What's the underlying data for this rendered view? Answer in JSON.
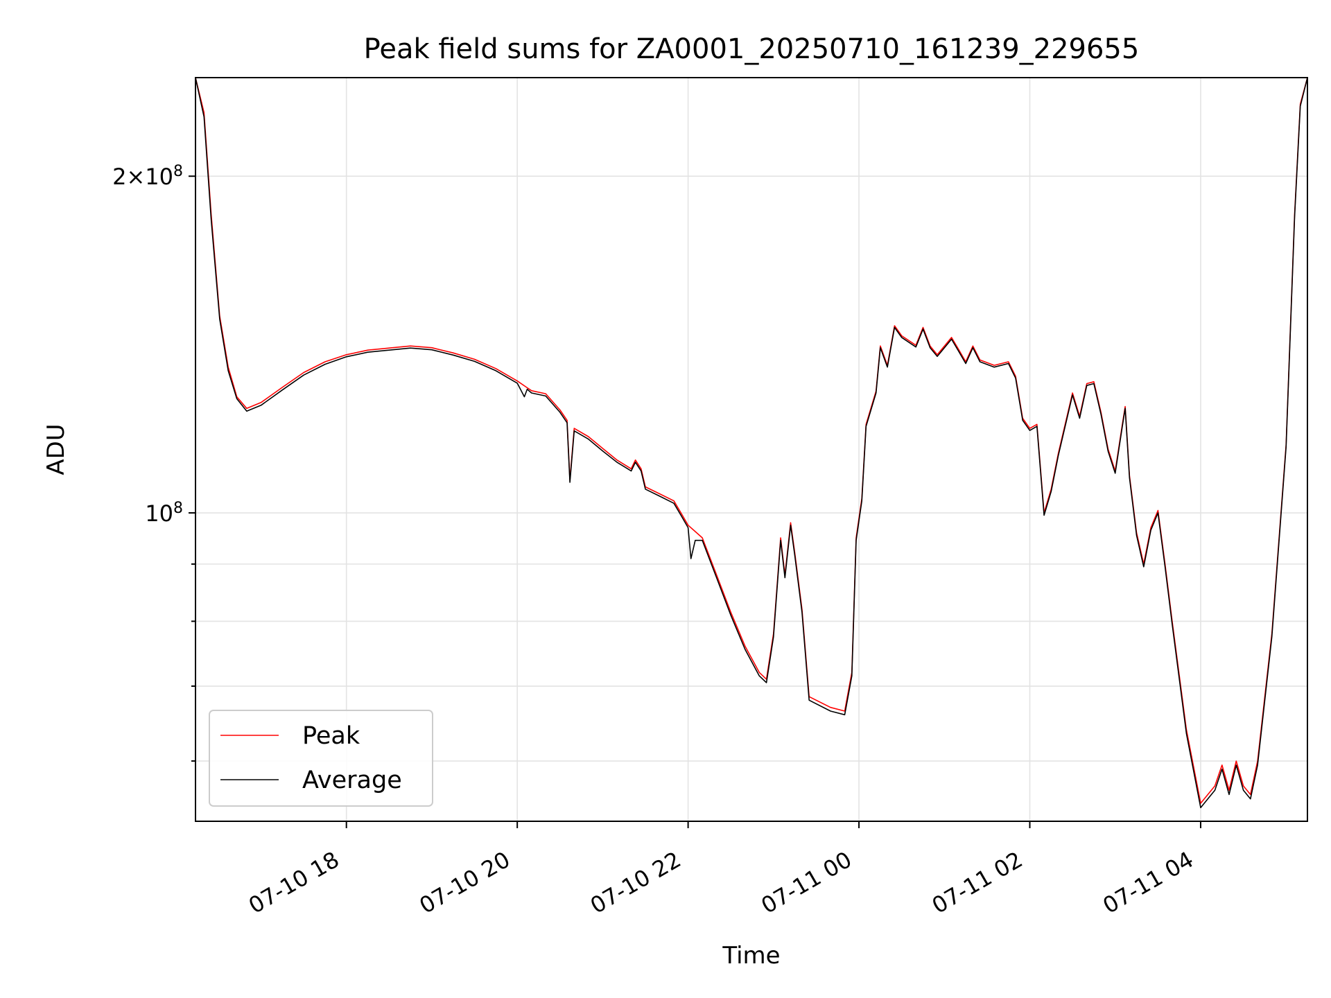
{
  "chart_data": {
    "type": "line",
    "title": "Peak field sums for ZA0001_20250710_161239_229655",
    "xlabel": "Time",
    "ylabel": "ADU",
    "y_scale": "log",
    "grid": true,
    "legend_position": "lower-left",
    "xlim": [
      "2025-07-10 16:14",
      "2025-07-11 05:15"
    ],
    "ylim": [
      53000000,
      245000000
    ],
    "x_ticks": [
      {
        "t": "2025-07-10 18:00",
        "label": "07-10 18"
      },
      {
        "t": "2025-07-10 20:00",
        "label": "07-10 20"
      },
      {
        "t": "2025-07-10 22:00",
        "label": "07-10 22"
      },
      {
        "t": "2025-07-11 00:00",
        "label": "07-11 00"
      },
      {
        "t": "2025-07-11 02:00",
        "label": "07-11 02"
      },
      {
        "t": "2025-07-11 04:00",
        "label": "07-11 04"
      }
    ],
    "y_ticks_major": [
      {
        "value": 100000000,
        "base": "10",
        "exp": "8",
        "coef": ""
      },
      {
        "value": 200000000,
        "base": "10",
        "exp": "8",
        "coef": "2×"
      }
    ],
    "y_ticks_minor": [
      60000000,
      70000000,
      80000000,
      90000000
    ],
    "series": [
      {
        "name": "Peak",
        "color": "#ff0000",
        "points": [
          [
            "2025-07-10 16:14",
            245000000
          ],
          [
            "2025-07-10 16:20",
            228000000
          ],
          [
            "2025-07-10 16:25",
            185000000
          ],
          [
            "2025-07-10 16:31",
            150000000
          ],
          [
            "2025-07-10 16:37",
            135000000
          ],
          [
            "2025-07-10 16:43",
            127000000
          ],
          [
            "2025-07-10 16:50",
            124000000
          ],
          [
            "2025-07-10 17:00",
            125500000
          ],
          [
            "2025-07-10 17:15",
            129500000
          ],
          [
            "2025-07-10 17:30",
            133500000
          ],
          [
            "2025-07-10 17:45",
            136500000
          ],
          [
            "2025-07-10 18:00",
            138500000
          ],
          [
            "2025-07-10 18:15",
            139800000
          ],
          [
            "2025-07-10 18:30",
            140400000
          ],
          [
            "2025-07-10 18:45",
            141000000
          ],
          [
            "2025-07-10 19:00",
            140500000
          ],
          [
            "2025-07-10 19:15",
            139000000
          ],
          [
            "2025-07-10 19:30",
            137200000
          ],
          [
            "2025-07-10 19:45",
            134600000
          ],
          [
            "2025-07-10 20:00",
            131200000
          ],
          [
            "2025-07-10 20:10",
            128600000
          ],
          [
            "2025-07-10 20:20",
            127800000
          ],
          [
            "2025-07-10 20:30",
            123600000
          ],
          [
            "2025-07-10 20:35",
            121000000
          ],
          [
            "2025-07-10 20:37",
            107000000
          ],
          [
            "2025-07-10 20:40",
            119000000
          ],
          [
            "2025-07-10 20:50",
            117000000
          ],
          [
            "2025-07-10 21:00",
            114200000
          ],
          [
            "2025-07-10 21:10",
            111500000
          ],
          [
            "2025-07-10 21:15",
            110500000
          ],
          [
            "2025-07-10 21:20",
            109500000
          ],
          [
            "2025-07-10 21:23",
            111500000
          ],
          [
            "2025-07-10 21:27",
            109500000
          ],
          [
            "2025-07-10 21:30",
            105500000
          ],
          [
            "2025-07-10 21:40",
            104000000
          ],
          [
            "2025-07-10 21:50",
            102500000
          ],
          [
            "2025-07-10 21:55",
            100000000
          ],
          [
            "2025-07-10 22:00",
            97500000
          ],
          [
            "2025-07-10 22:10",
            95000000
          ],
          [
            "2025-07-10 22:20",
            88000000
          ],
          [
            "2025-07-10 22:30",
            81500000
          ],
          [
            "2025-07-10 22:40",
            76000000
          ],
          [
            "2025-07-10 22:50",
            72000000
          ],
          [
            "2025-07-10 22:55",
            71000000
          ],
          [
            "2025-07-10 23:00",
            78000000
          ],
          [
            "2025-07-10 23:05",
            95000000
          ],
          [
            "2025-07-10 23:08",
            88000000
          ],
          [
            "2025-07-10 23:12",
            98000000
          ],
          [
            "2025-07-10 23:15",
            92000000
          ],
          [
            "2025-07-10 23:20",
            82000000
          ],
          [
            "2025-07-10 23:25",
            68500000
          ],
          [
            "2025-07-10 23:40",
            67000000
          ],
          [
            "2025-07-10 23:50",
            66500000
          ],
          [
            "2025-07-10 23:55",
            72000000
          ],
          [
            "2025-07-10 23:58",
            95000000
          ],
          [
            "2025-07-11 00:02",
            103000000
          ],
          [
            "2025-07-11 00:05",
            120000000
          ],
          [
            "2025-07-11 00:12",
            128500000
          ],
          [
            "2025-07-11 00:15",
            141000000
          ],
          [
            "2025-07-11 00:20",
            135500000
          ],
          [
            "2025-07-11 00:25",
            147000000
          ],
          [
            "2025-07-11 00:30",
            144000000
          ],
          [
            "2025-07-11 00:40",
            141200000
          ],
          [
            "2025-07-11 00:45",
            146500000
          ],
          [
            "2025-07-11 00:50",
            141000000
          ],
          [
            "2025-07-11 00:55",
            138500000
          ],
          [
            "2025-07-11 01:05",
            143500000
          ],
          [
            "2025-07-11 01:10",
            140000000
          ],
          [
            "2025-07-11 01:15",
            136500000
          ],
          [
            "2025-07-11 01:20",
            141000000
          ],
          [
            "2025-07-11 01:25",
            137000000
          ],
          [
            "2025-07-11 01:35",
            135500000
          ],
          [
            "2025-07-11 01:45",
            136500000
          ],
          [
            "2025-07-11 01:50",
            132500000
          ],
          [
            "2025-07-11 01:55",
            121500000
          ],
          [
            "2025-07-11 02:00",
            119000000
          ],
          [
            "2025-07-11 02:05",
            120000000
          ],
          [
            "2025-07-11 02:10",
            100000000
          ],
          [
            "2025-07-11 02:15",
            105000000
          ],
          [
            "2025-07-11 02:20",
            113000000
          ],
          [
            "2025-07-11 02:30",
            128000000
          ],
          [
            "2025-07-11 02:35",
            122000000
          ],
          [
            "2025-07-11 02:40",
            130500000
          ],
          [
            "2025-07-11 02:45",
            131000000
          ],
          [
            "2025-07-11 02:50",
            123000000
          ],
          [
            "2025-07-11 02:55",
            114000000
          ],
          [
            "2025-07-11 03:00",
            109000000
          ],
          [
            "2025-07-11 03:05",
            120000000
          ],
          [
            "2025-07-11 03:07",
            124500000
          ],
          [
            "2025-07-11 03:10",
            108000000
          ],
          [
            "2025-07-11 03:15",
            96000000
          ],
          [
            "2025-07-11 03:20",
            90000000
          ],
          [
            "2025-07-11 03:25",
            97000000
          ],
          [
            "2025-07-11 03:30",
            100500000
          ],
          [
            "2025-07-11 03:35",
            90000000
          ],
          [
            "2025-07-11 03:40",
            80000000
          ],
          [
            "2025-07-11 03:50",
            64000000
          ],
          [
            "2025-07-11 04:00",
            55000000
          ],
          [
            "2025-07-11 04:10",
            57000000
          ],
          [
            "2025-07-11 04:15",
            59500000
          ],
          [
            "2025-07-11 04:20",
            56500000
          ],
          [
            "2025-07-11 04:25",
            60000000
          ],
          [
            "2025-07-11 04:30",
            57000000
          ],
          [
            "2025-07-11 04:35",
            56000000
          ],
          [
            "2025-07-11 04:40",
            60000000
          ],
          [
            "2025-07-11 04:50",
            78000000
          ],
          [
            "2025-07-11 05:00",
            115000000
          ],
          [
            "2025-07-11 05:06",
            185000000
          ],
          [
            "2025-07-11 05:10",
            232000000
          ],
          [
            "2025-07-11 05:15",
            245000000
          ]
        ]
      },
      {
        "name": "Average",
        "color": "#000000",
        "points": [
          [
            "2025-07-10 16:14",
            245000000
          ],
          [
            "2025-07-10 16:20",
            226000000
          ],
          [
            "2025-07-10 16:25",
            183000000
          ],
          [
            "2025-07-10 16:31",
            149000000
          ],
          [
            "2025-07-10 16:37",
            134000000
          ],
          [
            "2025-07-10 16:43",
            126500000
          ],
          [
            "2025-07-10 16:50",
            123300000
          ],
          [
            "2025-07-10 17:00",
            124800000
          ],
          [
            "2025-07-10 17:15",
            128800000
          ],
          [
            "2025-07-10 17:30",
            132800000
          ],
          [
            "2025-07-10 17:45",
            135800000
          ],
          [
            "2025-07-10 18:00",
            137900000
          ],
          [
            "2025-07-10 18:15",
            139200000
          ],
          [
            "2025-07-10 18:30",
            139800000
          ],
          [
            "2025-07-10 18:45",
            140400000
          ],
          [
            "2025-07-10 19:00",
            139900000
          ],
          [
            "2025-07-10 19:15",
            138400000
          ],
          [
            "2025-07-10 19:30",
            136600000
          ],
          [
            "2025-07-10 19:45",
            134000000
          ],
          [
            "2025-07-10 20:00",
            130600000
          ],
          [
            "2025-07-10 20:05",
            127000000
          ],
          [
            "2025-07-10 20:07",
            129000000
          ],
          [
            "2025-07-10 20:10",
            128000000
          ],
          [
            "2025-07-10 20:20",
            127200000
          ],
          [
            "2025-07-10 20:30",
            123000000
          ],
          [
            "2025-07-10 20:35",
            120400000
          ],
          [
            "2025-07-10 20:37",
            106500000
          ],
          [
            "2025-07-10 20:40",
            118400000
          ],
          [
            "2025-07-10 20:50",
            116400000
          ],
          [
            "2025-07-10 21:00",
            113600000
          ],
          [
            "2025-07-10 21:10",
            111000000
          ],
          [
            "2025-07-10 21:15",
            110000000
          ],
          [
            "2025-07-10 21:20",
            109000000
          ],
          [
            "2025-07-10 21:23",
            111000000
          ],
          [
            "2025-07-10 21:27",
            109000000
          ],
          [
            "2025-07-10 21:30",
            105000000
          ],
          [
            "2025-07-10 21:40",
            103500000
          ],
          [
            "2025-07-10 21:50",
            102000000
          ],
          [
            "2025-07-10 21:55",
            99500000
          ],
          [
            "2025-07-10 22:00",
            97000000
          ],
          [
            "2025-07-10 22:02",
            91000000
          ],
          [
            "2025-07-10 22:05",
            94500000
          ],
          [
            "2025-07-10 22:10",
            94500000
          ],
          [
            "2025-07-10 22:20",
            87500000
          ],
          [
            "2025-07-10 22:30",
            81000000
          ],
          [
            "2025-07-10 22:40",
            75500000
          ],
          [
            "2025-07-10 22:50",
            71500000
          ],
          [
            "2025-07-10 22:55",
            70500000
          ],
          [
            "2025-07-10 23:00",
            77500000
          ],
          [
            "2025-07-10 23:05",
            94500000
          ],
          [
            "2025-07-10 23:08",
            87500000
          ],
          [
            "2025-07-10 23:12",
            97500000
          ],
          [
            "2025-07-10 23:15",
            91500000
          ],
          [
            "2025-07-10 23:20",
            81500000
          ],
          [
            "2025-07-10 23:25",
            68000000
          ],
          [
            "2025-07-10 23:40",
            66500000
          ],
          [
            "2025-07-10 23:50",
            66000000
          ],
          [
            "2025-07-10 23:55",
            71500000
          ],
          [
            "2025-07-10 23:58",
            94500000
          ],
          [
            "2025-07-11 00:02",
            102500000
          ],
          [
            "2025-07-11 00:05",
            119500000
          ],
          [
            "2025-07-11 00:12",
            128000000
          ],
          [
            "2025-07-11 00:15",
            140500000
          ],
          [
            "2025-07-11 00:20",
            135000000
          ],
          [
            "2025-07-11 00:25",
            146500000
          ],
          [
            "2025-07-11 00:30",
            143500000
          ],
          [
            "2025-07-11 00:40",
            140700000
          ],
          [
            "2025-07-11 00:45",
            146000000
          ],
          [
            "2025-07-11 00:50",
            140500000
          ],
          [
            "2025-07-11 00:55",
            138000000
          ],
          [
            "2025-07-11 01:05",
            143000000
          ],
          [
            "2025-07-11 01:10",
            139500000
          ],
          [
            "2025-07-11 01:15",
            136000000
          ],
          [
            "2025-07-11 01:20",
            140500000
          ],
          [
            "2025-07-11 01:25",
            136500000
          ],
          [
            "2025-07-11 01:35",
            135000000
          ],
          [
            "2025-07-11 01:45",
            136000000
          ],
          [
            "2025-07-11 01:50",
            132000000
          ],
          [
            "2025-07-11 01:55",
            121000000
          ],
          [
            "2025-07-11 02:00",
            118500000
          ],
          [
            "2025-07-11 02:05",
            119500000
          ],
          [
            "2025-07-11 02:10",
            99500000
          ],
          [
            "2025-07-11 02:15",
            104500000
          ],
          [
            "2025-07-11 02:20",
            112500000
          ],
          [
            "2025-07-11 02:30",
            127500000
          ],
          [
            "2025-07-11 02:35",
            121500000
          ],
          [
            "2025-07-11 02:40",
            130000000
          ],
          [
            "2025-07-11 02:45",
            130500000
          ],
          [
            "2025-07-11 02:50",
            122500000
          ],
          [
            "2025-07-11 02:55",
            113500000
          ],
          [
            "2025-07-11 03:00",
            108500000
          ],
          [
            "2025-07-11 03:05",
            119500000
          ],
          [
            "2025-07-11 03:07",
            124000000
          ],
          [
            "2025-07-11 03:10",
            107500000
          ],
          [
            "2025-07-11 03:15",
            95500000
          ],
          [
            "2025-07-11 03:20",
            89500000
          ],
          [
            "2025-07-11 03:25",
            96500000
          ],
          [
            "2025-07-11 03:30",
            100000000
          ],
          [
            "2025-07-11 03:35",
            89500000
          ],
          [
            "2025-07-11 03:40",
            79500000
          ],
          [
            "2025-07-11 03:50",
            63500000
          ],
          [
            "2025-07-11 04:00",
            54500000
          ],
          [
            "2025-07-11 04:10",
            56500000
          ],
          [
            "2025-07-11 04:15",
            59000000
          ],
          [
            "2025-07-11 04:20",
            56000000
          ],
          [
            "2025-07-11 04:25",
            59500000
          ],
          [
            "2025-07-11 04:30",
            56500000
          ],
          [
            "2025-07-11 04:35",
            55500000
          ],
          [
            "2025-07-11 04:40",
            59500000
          ],
          [
            "2025-07-11 04:50",
            77500000
          ],
          [
            "2025-07-11 05:00",
            114500000
          ],
          [
            "2025-07-11 05:06",
            184000000
          ],
          [
            "2025-07-11 05:10",
            231000000
          ],
          [
            "2025-07-11 05:15",
            245000000
          ]
        ]
      }
    ]
  }
}
